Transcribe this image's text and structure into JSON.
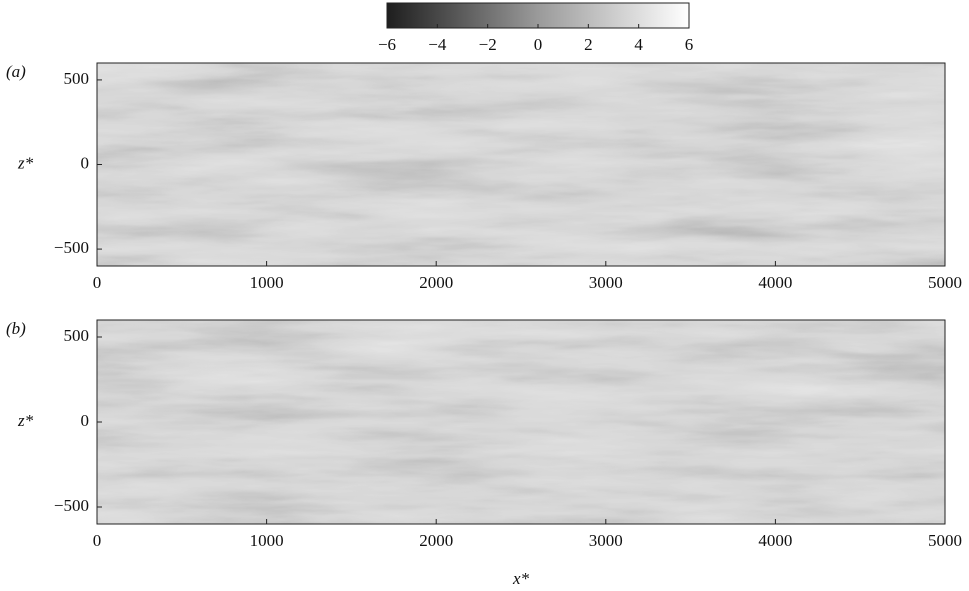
{
  "chart_data": [
    {
      "type": "heatmap",
      "panel_label": "(a)",
      "colormap": "gray",
      "xlim": [
        0,
        5000
      ],
      "xticks": [
        0,
        1000,
        2000,
        3000,
        4000,
        5000
      ],
      "ylim": [
        -600,
        600
      ],
      "yticks": [
        {
          "value": -500,
          "label": "−500"
        },
        0,
        500
      ],
      "ylabel": "z*",
      "colorbar": {
        "clim": [
          -6,
          6
        ],
        "ticks": [
          {
            "value": -6,
            "label": "−6"
          },
          {
            "value": -4,
            "label": "−4"
          },
          {
            "value": -2,
            "label": "−2"
          },
          0,
          2,
          4,
          6
        ]
      }
    },
    {
      "type": "heatmap",
      "panel_label": "(b)",
      "colormap": "gray",
      "xlim": [
        0,
        5000
      ],
      "xticks": [
        0,
        1000,
        2000,
        3000,
        4000,
        5000
      ],
      "ylim": [
        -600,
        600
      ],
      "yticks": [
        {
          "value": -500,
          "label": "−500"
        },
        0,
        500
      ],
      "ylabel": "z*",
      "xlabel": "x*"
    }
  ]
}
